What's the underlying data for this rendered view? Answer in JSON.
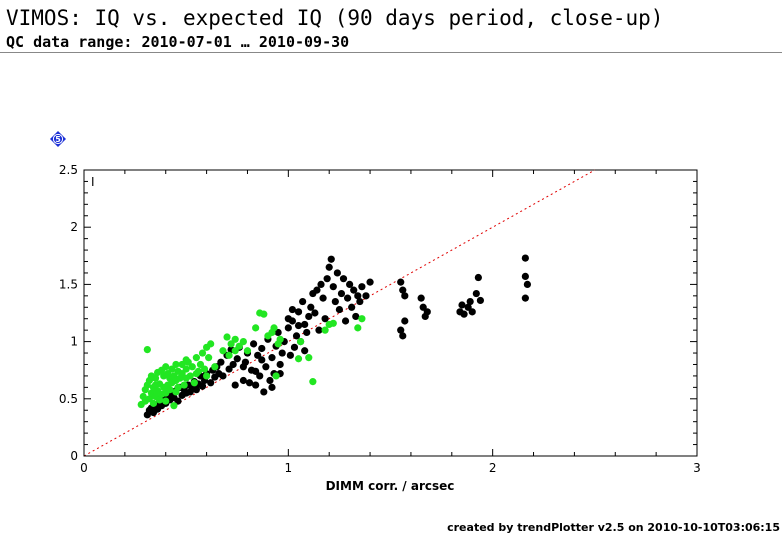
{
  "header": {
    "title": "VIMOS: IQ vs. expected IQ (90 days period, close-up)",
    "subtitle": "QC data range: 2010-07-01 … 2010-09-30"
  },
  "badge": {
    "label": "5",
    "color": "#1a2fd6"
  },
  "footer": {
    "text": "created by trendPlotter v2.5 on 2010-10-10T03:06:15"
  },
  "chart_data": {
    "type": "scatter",
    "xlabel": "DIMM corr. / arcsec",
    "ylabel": "",
    "panel_label": "I",
    "xlim": [
      0,
      3
    ],
    "ylim": [
      0,
      2.5
    ],
    "x_ticks": [
      "0",
      "1",
      "2",
      "3"
    ],
    "y_ticks": [
      "0",
      "0.5",
      "1",
      "1.5",
      "2",
      "2.5"
    ],
    "reference_line": {
      "slope": 1,
      "color": "#e00000",
      "style": "dotted"
    },
    "series": [
      {
        "color": "#000000",
        "points": [
          [
            0.31,
            0.36
          ],
          [
            0.32,
            0.4
          ],
          [
            0.33,
            0.42
          ],
          [
            0.34,
            0.38
          ],
          [
            0.35,
            0.45
          ],
          [
            0.36,
            0.41
          ],
          [
            0.37,
            0.47
          ],
          [
            0.38,
            0.44
          ],
          [
            0.39,
            0.5
          ],
          [
            0.4,
            0.46
          ],
          [
            0.41,
            0.52
          ],
          [
            0.42,
            0.49
          ],
          [
            0.43,
            0.55
          ],
          [
            0.44,
            0.51
          ],
          [
            0.45,
            0.57
          ],
          [
            0.46,
            0.48
          ],
          [
            0.47,
            0.6
          ],
          [
            0.48,
            0.53
          ],
          [
            0.49,
            0.58
          ],
          [
            0.5,
            0.55
          ],
          [
            0.51,
            0.62
          ],
          [
            0.52,
            0.56
          ],
          [
            0.53,
            0.6
          ],
          [
            0.54,
            0.65
          ],
          [
            0.55,
            0.58
          ],
          [
            0.56,
            0.63
          ],
          [
            0.57,
            0.7
          ],
          [
            0.58,
            0.61
          ],
          [
            0.59,
            0.66
          ],
          [
            0.6,
            0.72
          ],
          [
            0.62,
            0.64
          ],
          [
            0.63,
            0.75
          ],
          [
            0.64,
            0.69
          ],
          [
            0.65,
            0.78
          ],
          [
            0.66,
            0.72
          ],
          [
            0.67,
            0.82
          ],
          [
            0.68,
            0.7
          ],
          [
            0.7,
            0.88
          ],
          [
            0.71,
            0.76
          ],
          [
            0.72,
            0.93
          ],
          [
            0.73,
            0.8
          ],
          [
            0.74,
            0.62
          ],
          [
            0.75,
            0.85
          ],
          [
            0.76,
            0.95
          ],
          [
            0.78,
            0.66
          ],
          [
            0.79,
            0.82
          ],
          [
            0.8,
            0.9
          ],
          [
            0.81,
            0.64
          ],
          [
            0.82,
            0.75
          ],
          [
            0.83,
            0.98
          ],
          [
            0.84,
            0.62
          ],
          [
            0.85,
            0.88
          ],
          [
            0.86,
            0.7
          ],
          [
            0.87,
            0.94
          ],
          [
            0.88,
            0.56
          ],
          [
            0.89,
            0.78
          ],
          [
            0.9,
            1.02
          ],
          [
            0.91,
            0.66
          ],
          [
            0.92,
            0.86
          ],
          [
            0.93,
            0.72
          ],
          [
            0.94,
            0.96
          ],
          [
            0.95,
            1.08
          ],
          [
            0.96,
            0.8
          ],
          [
            0.97,
            0.9
          ],
          [
            0.98,
            1.0
          ],
          [
            1.0,
            1.12
          ],
          [
            1.01,
            0.88
          ],
          [
            1.02,
            1.18
          ],
          [
            1.03,
            0.95
          ],
          [
            1.04,
            1.05
          ],
          [
            1.05,
            1.26
          ],
          [
            1.06,
            1.0
          ],
          [
            1.07,
            1.35
          ],
          [
            1.08,
            1.15
          ],
          [
            1.09,
            1.08
          ],
          [
            1.1,
            1.22
          ],
          [
            1.11,
            1.3
          ],
          [
            1.12,
            1.42
          ],
          [
            1.13,
            1.25
          ],
          [
            1.14,
            1.45
          ],
          [
            1.15,
            1.1
          ],
          [
            1.16,
            1.5
          ],
          [
            1.17,
            1.38
          ],
          [
            1.18,
            1.2
          ],
          [
            1.19,
            1.55
          ],
          [
            1.2,
            1.65
          ],
          [
            1.21,
            1.72
          ],
          [
            1.22,
            1.48
          ],
          [
            1.23,
            1.35
          ],
          [
            1.24,
            1.6
          ],
          [
            1.25,
            1.28
          ],
          [
            1.26,
            1.42
          ],
          [
            1.27,
            1.55
          ],
          [
            1.28,
            1.18
          ],
          [
            1.29,
            1.38
          ],
          [
            1.3,
            1.5
          ],
          [
            1.31,
            1.3
          ],
          [
            1.32,
            1.45
          ],
          [
            1.33,
            1.22
          ],
          [
            1.34,
            1.4
          ],
          [
            1.35,
            1.35
          ],
          [
            1.36,
            1.48
          ],
          [
            1.38,
            1.4
          ],
          [
            1.4,
            1.52
          ],
          [
            1.55,
            1.52
          ],
          [
            1.56,
            1.45
          ],
          [
            1.57,
            1.4
          ],
          [
            1.55,
            1.1
          ],
          [
            1.56,
            1.05
          ],
          [
            1.57,
            1.18
          ],
          [
            1.65,
            1.38
          ],
          [
            1.66,
            1.3
          ],
          [
            1.67,
            1.22
          ],
          [
            1.68,
            1.26
          ],
          [
            1.84,
            1.26
          ],
          [
            1.85,
            1.32
          ],
          [
            1.86,
            1.24
          ],
          [
            1.88,
            1.3
          ],
          [
            1.89,
            1.35
          ],
          [
            1.9,
            1.26
          ],
          [
            1.92,
            1.42
          ],
          [
            1.93,
            1.56
          ],
          [
            1.94,
            1.36
          ],
          [
            2.16,
            1.73
          ],
          [
            2.16,
            1.57
          ],
          [
            2.17,
            1.5
          ],
          [
            2.16,
            1.38
          ],
          [
            1.08,
            0.92
          ],
          [
            0.96,
            0.72
          ],
          [
            0.92,
            0.6
          ],
          [
            0.78,
            0.78
          ],
          [
            0.84,
            0.74
          ],
          [
            0.87,
            0.84
          ],
          [
            1.0,
            1.2
          ],
          [
            1.02,
            1.28
          ],
          [
            1.05,
            1.14
          ]
        ]
      },
      {
        "color": "#22e622",
        "points": [
          [
            0.28,
            0.45
          ],
          [
            0.29,
            0.52
          ],
          [
            0.3,
            0.48
          ],
          [
            0.3,
            0.58
          ],
          [
            0.31,
            0.62
          ],
          [
            0.31,
            0.93
          ],
          [
            0.32,
            0.5
          ],
          [
            0.32,
            0.66
          ],
          [
            0.33,
            0.55
          ],
          [
            0.33,
            0.7
          ],
          [
            0.34,
            0.46
          ],
          [
            0.34,
            0.6
          ],
          [
            0.35,
            0.52
          ],
          [
            0.35,
            0.68
          ],
          [
            0.36,
            0.57
          ],
          [
            0.36,
            0.73
          ],
          [
            0.37,
            0.49
          ],
          [
            0.37,
            0.63
          ],
          [
            0.38,
            0.54
          ],
          [
            0.38,
            0.75
          ],
          [
            0.39,
            0.6
          ],
          [
            0.39,
            0.7
          ],
          [
            0.4,
            0.55
          ],
          [
            0.4,
            0.78
          ],
          [
            0.41,
            0.62
          ],
          [
            0.41,
            0.72
          ],
          [
            0.42,
            0.58
          ],
          [
            0.42,
            0.68
          ],
          [
            0.43,
            0.64
          ],
          [
            0.43,
            0.76
          ],
          [
            0.44,
            0.7
          ],
          [
            0.44,
            0.44
          ],
          [
            0.45,
            0.66
          ],
          [
            0.45,
            0.8
          ],
          [
            0.46,
            0.6
          ],
          [
            0.46,
            0.74
          ],
          [
            0.47,
            0.68
          ],
          [
            0.48,
            0.72
          ],
          [
            0.48,
            0.8
          ],
          [
            0.49,
            0.62
          ],
          [
            0.5,
            0.76
          ],
          [
            0.5,
            0.68
          ],
          [
            0.51,
            0.82
          ],
          [
            0.52,
            0.7
          ],
          [
            0.53,
            0.78
          ],
          [
            0.54,
            0.64
          ],
          [
            0.55,
            0.86
          ],
          [
            0.56,
            0.74
          ],
          [
            0.57,
            0.8
          ],
          [
            0.58,
            0.9
          ],
          [
            0.59,
            0.76
          ],
          [
            0.6,
            0.95
          ],
          [
            0.61,
            0.86
          ],
          [
            0.62,
            0.98
          ],
          [
            0.55,
            0.72
          ],
          [
            0.5,
            0.84
          ],
          [
            0.45,
            0.56
          ],
          [
            0.4,
            0.48
          ],
          [
            0.35,
            0.62
          ],
          [
            0.6,
            0.7
          ],
          [
            0.64,
            0.78
          ],
          [
            0.68,
            0.92
          ],
          [
            0.7,
            1.04
          ],
          [
            0.72,
            0.98
          ],
          [
            0.74,
            1.02
          ],
          [
            0.76,
            0.96
          ],
          [
            0.74,
            0.92
          ],
          [
            0.78,
            1.0
          ],
          [
            0.71,
            0.88
          ],
          [
            0.8,
            0.92
          ],
          [
            0.84,
            1.12
          ],
          [
            0.86,
            1.25
          ],
          [
            0.88,
            1.24
          ],
          [
            0.92,
            1.08
          ],
          [
            0.93,
            1.12
          ],
          [
            0.95,
            0.98
          ],
          [
            1.05,
            0.85
          ],
          [
            1.06,
            1.0
          ],
          [
            1.1,
            0.86
          ],
          [
            1.12,
            0.65
          ],
          [
            1.18,
            1.1
          ],
          [
            1.2,
            1.15
          ],
          [
            1.22,
            1.16
          ],
          [
            1.34,
            1.12
          ],
          [
            1.36,
            1.2
          ],
          [
            0.94,
            0.7
          ],
          [
            0.9,
            1.05
          ],
          [
            0.96,
            1.02
          ]
        ]
      }
    ]
  }
}
